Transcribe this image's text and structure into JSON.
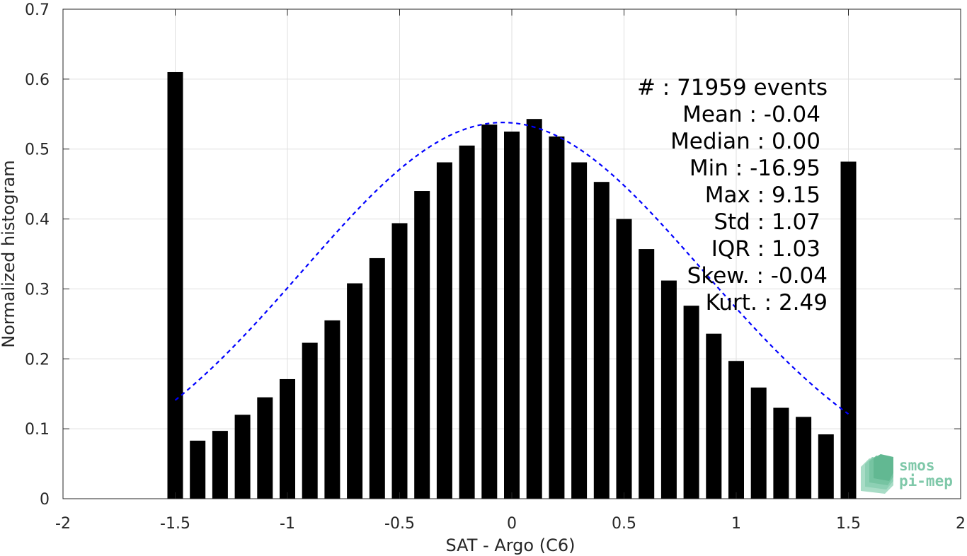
{
  "chart_data": {
    "type": "bar",
    "xlabel": "SAT - Argo (C6)",
    "ylabel": "Normalized histogram",
    "xlim": [
      -2,
      2
    ],
    "ylim": [
      0,
      0.7
    ],
    "xticks": [
      -2,
      -1.5,
      -1,
      -0.5,
      0,
      0.5,
      1,
      1.5,
      2
    ],
    "xtick_labels": [
      "-2",
      "-1.5",
      "-1",
      "-0.5",
      "0",
      "0.5",
      "1",
      "1.5",
      "2"
    ],
    "yticks": [
      0,
      0.1,
      0.2,
      0.3,
      0.4,
      0.5,
      0.6,
      0.7
    ],
    "ytick_labels": [
      "0",
      "0.1",
      "0.2",
      "0.3",
      "0.4",
      "0.5",
      "0.6",
      "0.7"
    ],
    "grid": true,
    "bar_color": "#000000",
    "bars": {
      "x": [
        -1.5,
        -1.4,
        -1.3,
        -1.2,
        -1.1,
        -1.0,
        -0.9,
        -0.8,
        -0.7,
        -0.6,
        -0.5,
        -0.4,
        -0.3,
        -0.2,
        -0.1,
        0.0,
        0.1,
        0.2,
        0.3,
        0.4,
        0.5,
        0.6,
        0.7,
        0.8,
        0.9,
        1.0,
        1.1,
        1.2,
        1.3,
        1.4,
        1.5
      ],
      "values": [
        0.61,
        0.083,
        0.097,
        0.12,
        0.145,
        0.171,
        0.223,
        0.255,
        0.308,
        0.344,
        0.394,
        0.44,
        0.481,
        0.505,
        0.535,
        0.525,
        0.543,
        0.518,
        0.481,
        0.453,
        0.4,
        0.357,
        0.312,
        0.276,
        0.236,
        0.197,
        0.159,
        0.13,
        0.117,
        0.092,
        0.482
      ]
    },
    "fit_curve": {
      "type": "gaussian",
      "color": "#0000ff",
      "style": "dashed",
      "mean": -0.04,
      "std": 1.07,
      "peak": 0.538,
      "x_range": [
        -1.5,
        1.5
      ]
    },
    "stats": [
      "#  : 71959 events",
      "Mean : -0.04",
      "Median : 0.00",
      "Min : -16.95",
      "Max : 9.15",
      "Std : 1.07",
      "IQR : 1.03",
      "Skew. : -0.04",
      "Kurt. : 2.49"
    ]
  },
  "logo": {
    "line1": "smos",
    "line2": "pi-mep",
    "color": "#7fc8a9"
  }
}
